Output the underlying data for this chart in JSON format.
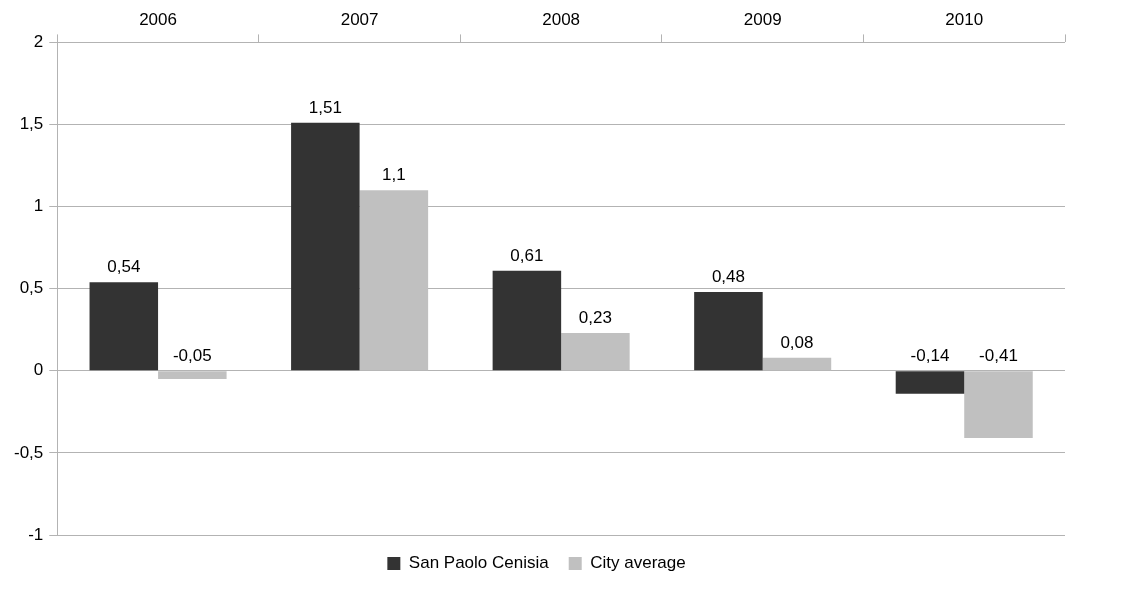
{
  "chart_data": {
    "type": "bar",
    "categories": [
      "2006",
      "2007",
      "2008",
      "2009",
      "2010"
    ],
    "series": [
      {
        "name": "San Paolo Cenisia",
        "color": "#333333",
        "values": [
          0.54,
          1.51,
          0.61,
          0.48,
          -0.14
        ],
        "value_labels": [
          "0,54",
          "1,51",
          "0,61",
          "0,48",
          "-0,14"
        ]
      },
      {
        "name": "City average",
        "color": "#c0c0c0",
        "values": [
          -0.05,
          1.1,
          0.23,
          0.08,
          -0.41
        ],
        "value_labels": [
          "-0,05",
          "1,1",
          "0,23",
          "0,08",
          "-0,41"
        ]
      }
    ],
    "ylim": [
      -1,
      2
    ],
    "yticks": [
      -1,
      {
        "value": -0.5,
        "label": "-0,5"
      },
      0,
      {
        "value": 0.5,
        "label": "0,5"
      },
      1,
      {
        "value": 1.5,
        "label": "1,5"
      },
      2
    ],
    "grid": "y",
    "legend": "bottom"
  }
}
